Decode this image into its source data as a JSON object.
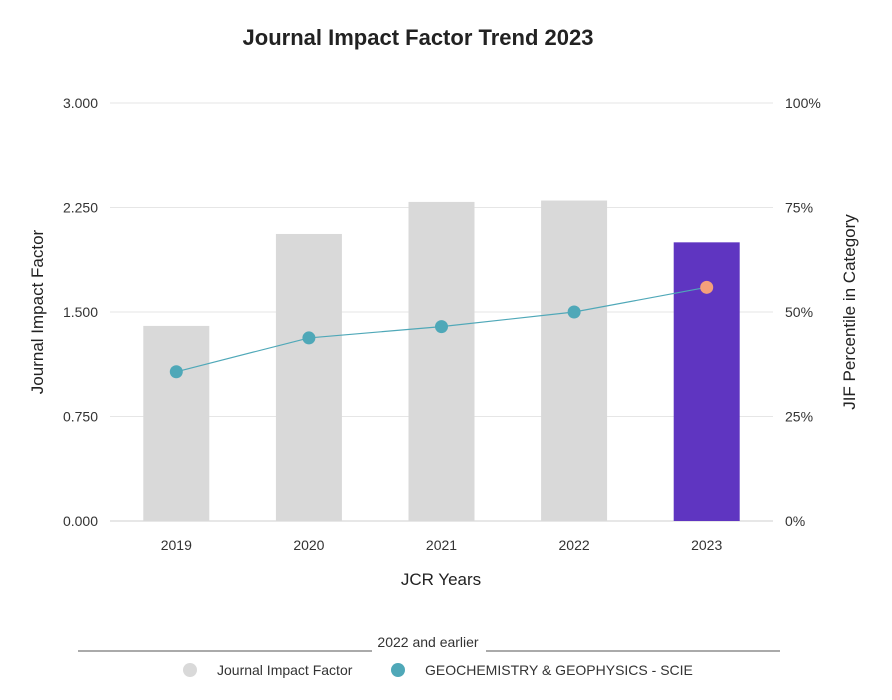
{
  "chart_data": {
    "type": "bar",
    "title": "Journal Impact Factor Trend 2023",
    "xlabel": "JCR Years",
    "ylabel": "Journal Impact Factor",
    "y2label": "JIF Percentile in Category",
    "categories": [
      "2019",
      "2020",
      "2021",
      "2022",
      "2023"
    ],
    "ylim": [
      0,
      3
    ],
    "y_ticks": [
      "0.000",
      "0.750",
      "1.500",
      "2.250",
      "3.000"
    ],
    "y2lim": [
      0,
      100
    ],
    "y2_ticks": [
      "0%",
      "25%",
      "50%",
      "75%",
      "100%"
    ],
    "grid": true,
    "series": [
      {
        "name": "Journal Impact Factor",
        "type": "bar",
        "axis": "left",
        "values": [
          1.4,
          2.06,
          2.29,
          2.3,
          2.0
        ],
        "color": "#d9d9d9",
        "highlight_color": "#5f35c1"
      },
      {
        "name": "GEOCHEMISTRY & GEOPHYSICS - SCIE",
        "type": "line",
        "axis": "right",
        "values": [
          35.7,
          43.8,
          46.5,
          50.0,
          55.9
        ],
        "color": "#4fa8b8",
        "highlight_color": "#f4a07a"
      }
    ],
    "divider_label": "2022 and earlier",
    "legend_position": "bottom"
  }
}
